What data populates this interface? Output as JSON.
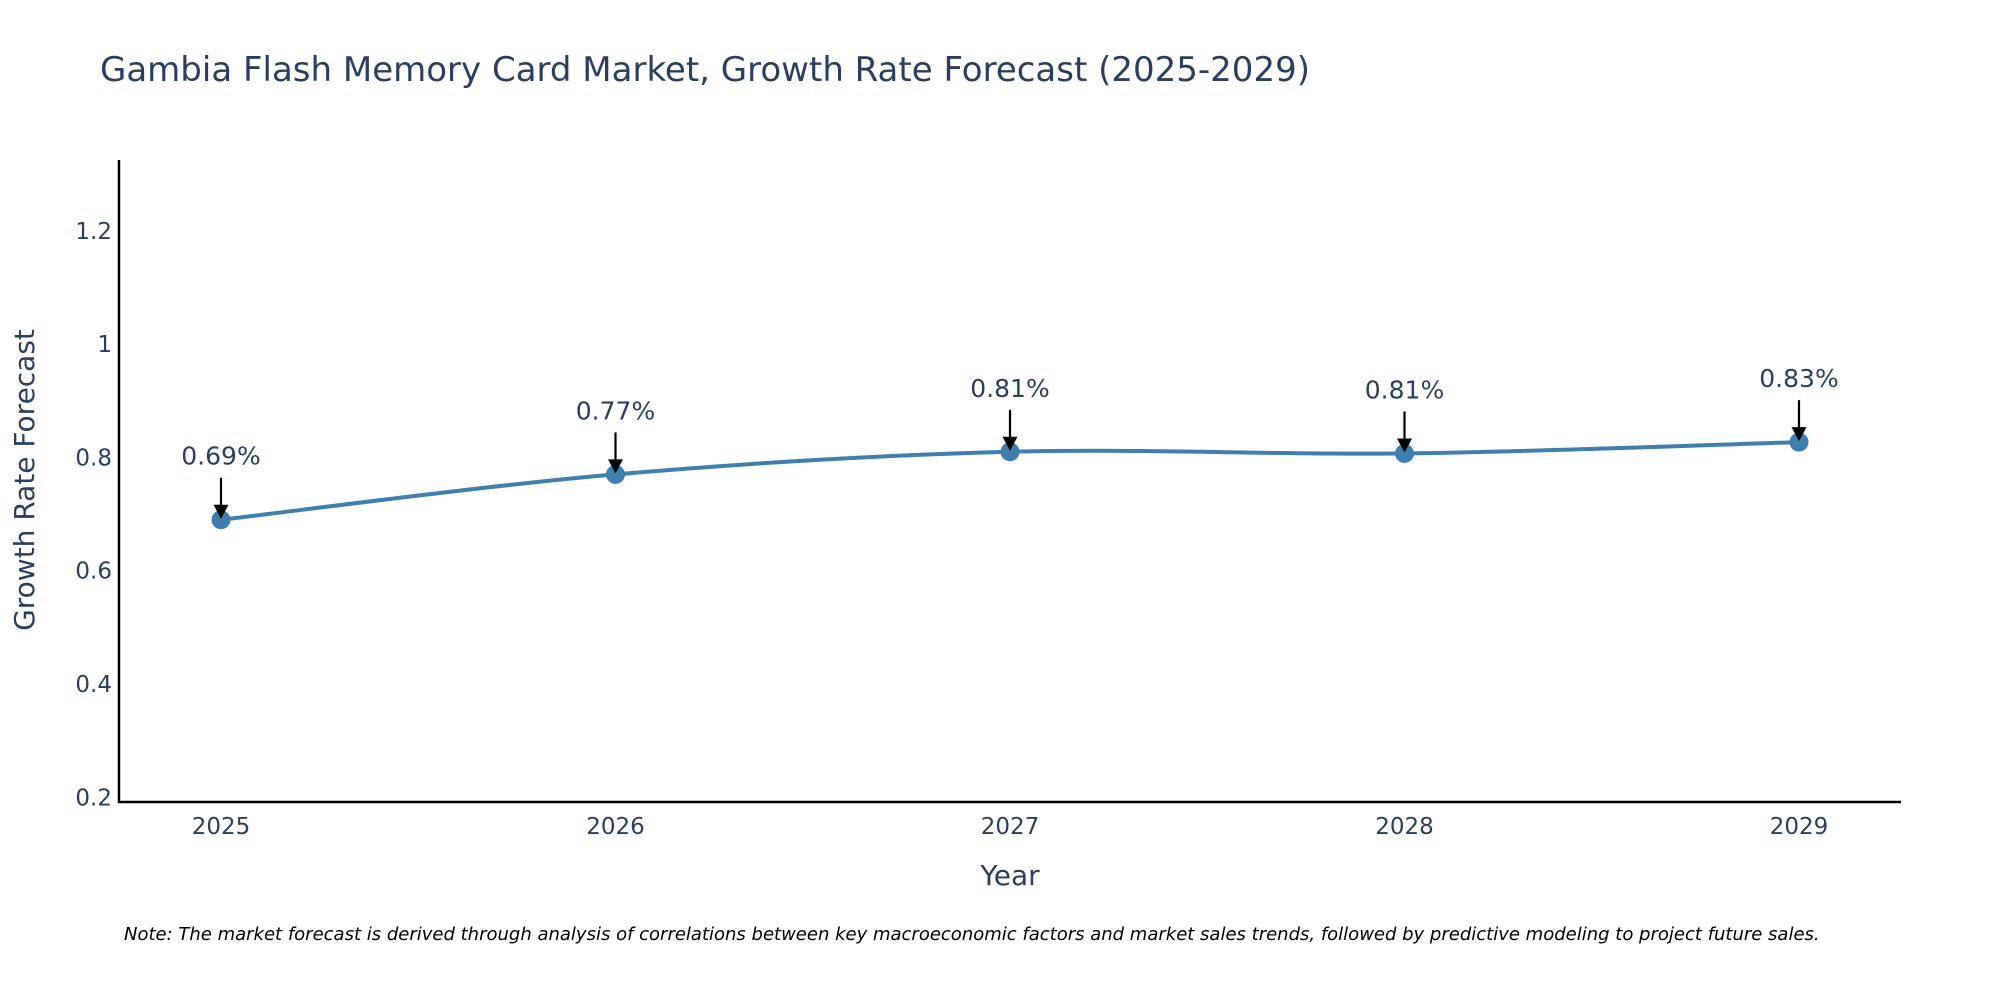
{
  "chart_data": {
    "type": "line",
    "title": "Gambia Flash Memory Card Market, Growth Rate Forecast (2025-2029)",
    "xlabel": "Year",
    "ylabel": "Growth Rate Forecast",
    "x": [
      "2025",
      "2026",
      "2027",
      "2028",
      "2029"
    ],
    "series": [
      {
        "name": "Growth Rate Forecast",
        "values": [
          0.69,
          0.77,
          0.81,
          0.807,
          0.827
        ],
        "labels": [
          "0.69%",
          "0.77%",
          "0.81%",
          "0.81%",
          "0.83%"
        ]
      }
    ],
    "ylim": [
      0.19,
      1.325
    ],
    "yticks": [
      0.2,
      0.4,
      0.6,
      0.8,
      1,
      1.2
    ],
    "ytick_labels": [
      "0.2",
      "0.4",
      "0.6",
      "0.8",
      "1",
      "1.2"
    ],
    "grid": false,
    "line_shape": "spline",
    "colors": {
      "line": "#3f7fae",
      "marker": "#3f7fae",
      "axis": "#000000",
      "text": "#2a3f5f",
      "arrow": "#000000"
    },
    "note": "Note: The market forecast is derived through analysis of correlations between key macroeconomic factors and market sales trends, followed by predictive modeling to project future sales."
  }
}
